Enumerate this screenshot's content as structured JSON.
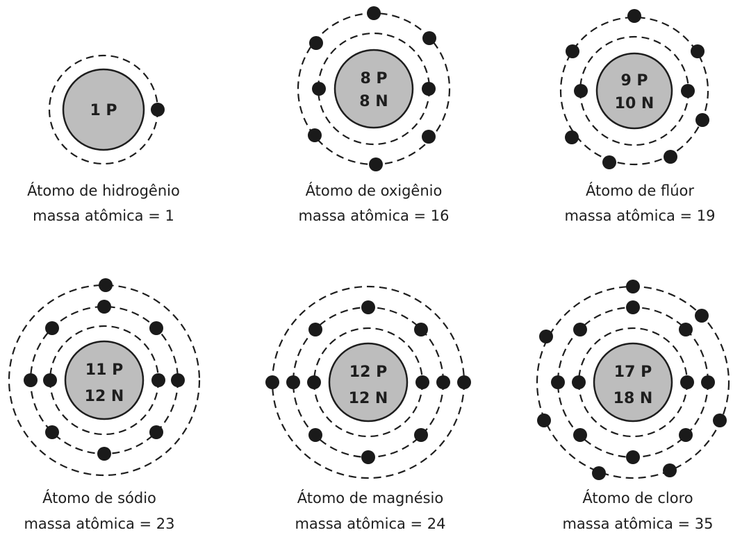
{
  "colors": {
    "nucleus": "#bdbdbd",
    "line": "#1e1e1e",
    "electron": "#1a1a1a",
    "background": "#ffffff"
  },
  "atoms": [
    {
      "protons": "1 P",
      "neutrons": "",
      "shells": [
        1
      ],
      "name": "Átomo de hidrogênio",
      "mass": "massa atômica =  1"
    },
    {
      "protons": "8 P",
      "neutrons": "8 N",
      "shells": [
        2,
        6
      ],
      "name": "Átomo de oxigênio",
      "mass": "massa atômica =  16"
    },
    {
      "protons": "9 P",
      "neutrons": "10 N",
      "shells": [
        2,
        7
      ],
      "name": "Átomo de flúor",
      "mass": "massa atômica =  19"
    },
    {
      "protons": "11 P",
      "neutrons": "12 N",
      "shells": [
        2,
        8,
        1
      ],
      "name": "Átomo de sódio",
      "mass": "massa atômica =  23"
    },
    {
      "protons": "12 P",
      "neutrons": "12 N",
      "shells": [
        2,
        8,
        2
      ],
      "name": "Átomo de magnésio",
      "mass": "massa atômica =  24"
    },
    {
      "protons": "17 P",
      "neutrons": "18 N",
      "shells": [
        2,
        8,
        7
      ],
      "name": "Átomo de cloro",
      "mass": "massa atômica =  35"
    }
  ]
}
